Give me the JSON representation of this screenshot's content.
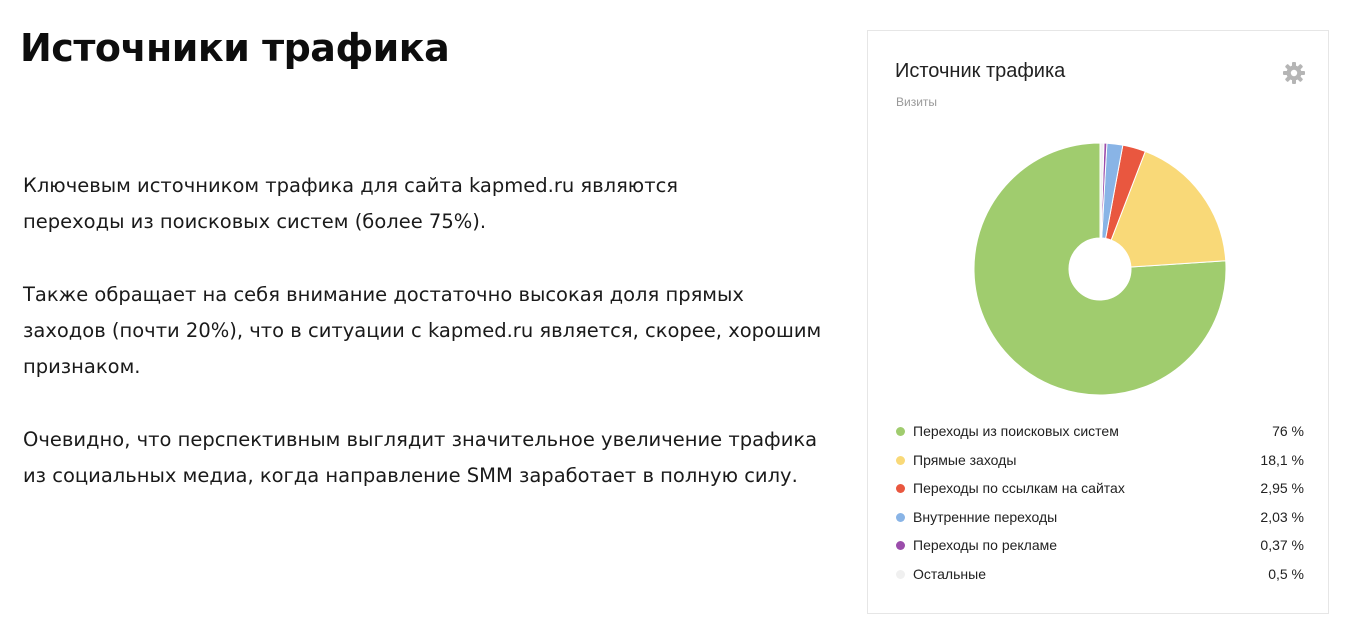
{
  "page": {
    "heading": "Источники трафика",
    "paragraphs": [
      {
        "lines": [
          "Ключевым источником трафика для сайта kapmed.ru являются",
          "переходы из поисковых систем (более 75%)."
        ]
      },
      {
        "lines": [
          "Также обращает на себя внимание достаточно высокая доля прямых",
          "заходов (почти 20%), что в ситуации с kapmed.ru является, скорее, хорошим",
          "признаком."
        ]
      },
      {
        "lines": [
          "Очевидно, что перспективным выглядит значительное увеличение трафика",
          "из социальных медиа, когда направление SMM заработает в полную силу."
        ]
      }
    ]
  },
  "widget": {
    "settings_icon": "gear-icon"
  },
  "chart_data": {
    "type": "pie",
    "donut": true,
    "title": "Источник трафика",
    "subtitle": "Визиты",
    "legend_position": "bottom",
    "slices": [
      {
        "label": "Переходы из поисковых систем",
        "value": 76,
        "display": "76 %",
        "color": "#a0cc6e"
      },
      {
        "label": "Прямые заходы",
        "value": 18.1,
        "display": "18,1 %",
        "color": "#f9d978"
      },
      {
        "label": "Переходы по ссылкам на сайтах",
        "value": 2.95,
        "display": "2,95 %",
        "color": "#e9573f"
      },
      {
        "label": "Внутренние переходы",
        "value": 2.03,
        "display": "2,03 %",
        "color": "#89b4e6"
      },
      {
        "label": "Переходы по рекламе",
        "value": 0.37,
        "display": "0,37 %",
        "color": "#9b4dab"
      },
      {
        "label": "Остальные",
        "value": 0.5,
        "display": "0,5 %",
        "color": "#f0f0f0"
      }
    ]
  }
}
